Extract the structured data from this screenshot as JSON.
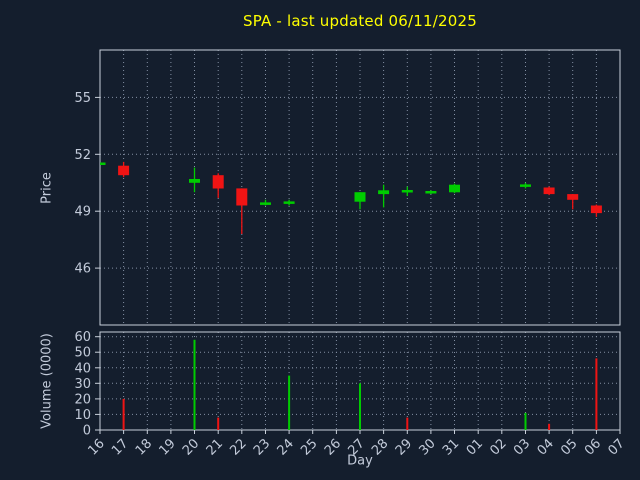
{
  "title": "SPA - last updated 06/11/2025",
  "axes": {
    "price_label": "Price",
    "volume_label": "Volume (0000)",
    "x_label": "Day"
  },
  "colors": {
    "background": "#141e2d",
    "title": "#ffff00",
    "axis_text": "#c3cbda",
    "grid": "#84capture",
    "grid_dots": "#8490a4",
    "frame": "#c9d0da",
    "up": "#00cc00",
    "down": "#f01414"
  },
  "chart_data": [
    {
      "type": "candlestick",
      "title": "SPA - last updated 06/11/2025",
      "xlabel": "Day",
      "ylabel": "Price",
      "ylim": [
        43,
        57.5
      ],
      "yticks": [
        46,
        49,
        52,
        55
      ],
      "grid": "dotted",
      "categories": [
        "16",
        "17",
        "18",
        "19",
        "20",
        "21",
        "22",
        "23",
        "24",
        "25",
        "26",
        "27",
        "28",
        "29",
        "30",
        "31",
        "01",
        "02",
        "03",
        "04",
        "05",
        "06",
        "07"
      ],
      "candles": [
        {
          "day": "16",
          "open": 51.5,
          "high": 51.5,
          "low": 51.5,
          "close": 51.5,
          "dir": "up"
        },
        {
          "day": "17",
          "open": 51.4,
          "high": 51.6,
          "low": 50.8,
          "close": 50.9,
          "dir": "down"
        },
        {
          "day": "20",
          "open": 50.5,
          "high": 51.3,
          "low": 50.0,
          "close": 50.7,
          "dir": "up"
        },
        {
          "day": "21",
          "open": 50.9,
          "high": 51.0,
          "low": 49.7,
          "close": 50.2,
          "dir": "down"
        },
        {
          "day": "22",
          "open": 50.2,
          "high": 50.2,
          "low": 47.8,
          "close": 49.3,
          "dir": "down"
        },
        {
          "day": "23",
          "open": 49.4,
          "high": 49.6,
          "low": 49.3,
          "close": 49.4,
          "dir": "up"
        },
        {
          "day": "24",
          "open": 49.4,
          "high": 49.6,
          "low": 49.3,
          "close": 49.5,
          "dir": "up"
        },
        {
          "day": "27",
          "open": 49.5,
          "high": 50.0,
          "low": 49.1,
          "close": 50.0,
          "dir": "up"
        },
        {
          "day": "28",
          "open": 49.9,
          "high": 50.4,
          "low": 49.2,
          "close": 50.1,
          "dir": "up"
        },
        {
          "day": "29",
          "open": 50.0,
          "high": 50.3,
          "low": 49.8,
          "close": 50.1,
          "dir": "up"
        },
        {
          "day": "30",
          "open": 50.0,
          "high": 50.1,
          "low": 49.9,
          "close": 50.0,
          "dir": "up"
        },
        {
          "day": "31",
          "open": 50.0,
          "high": 50.45,
          "low": 49.95,
          "close": 50.4,
          "dir": "up"
        },
        {
          "day": "03",
          "open": 50.3,
          "high": 50.5,
          "low": 50.2,
          "close": 50.4,
          "dir": "up"
        },
        {
          "day": "04",
          "open": 50.25,
          "high": 50.3,
          "low": 49.85,
          "close": 49.9,
          "dir": "down"
        },
        {
          "day": "05",
          "open": 49.9,
          "high": 49.9,
          "low": 49.1,
          "close": 49.6,
          "dir": "down"
        },
        {
          "day": "06",
          "open": 49.3,
          "high": 49.35,
          "low": 48.7,
          "close": 48.9,
          "dir": "down"
        }
      ]
    },
    {
      "type": "bar",
      "xlabel": "Day",
      "ylabel": "Volume (0000)",
      "ylim": [
        0,
        63
      ],
      "yticks": [
        0,
        10,
        20,
        30,
        40,
        50,
        60
      ],
      "grid": "dotted",
      "categories": [
        "16",
        "17",
        "18",
        "19",
        "20",
        "21",
        "22",
        "23",
        "24",
        "25",
        "26",
        "27",
        "28",
        "29",
        "30",
        "31",
        "01",
        "02",
        "03",
        "04",
        "05",
        "06",
        "07"
      ],
      "bars": [
        {
          "day": "17",
          "value": 20,
          "dir": "down"
        },
        {
          "day": "20",
          "value": 58,
          "dir": "up"
        },
        {
          "day": "21",
          "value": 8,
          "dir": "down"
        },
        {
          "day": "24",
          "value": 35,
          "dir": "up"
        },
        {
          "day": "27",
          "value": 30,
          "dir": "up"
        },
        {
          "day": "29",
          "value": 8,
          "dir": "down"
        },
        {
          "day": "03",
          "value": 11,
          "dir": "up"
        },
        {
          "day": "04",
          "value": 4,
          "dir": "down"
        },
        {
          "day": "06",
          "value": 46,
          "dir": "down"
        }
      ]
    }
  ]
}
